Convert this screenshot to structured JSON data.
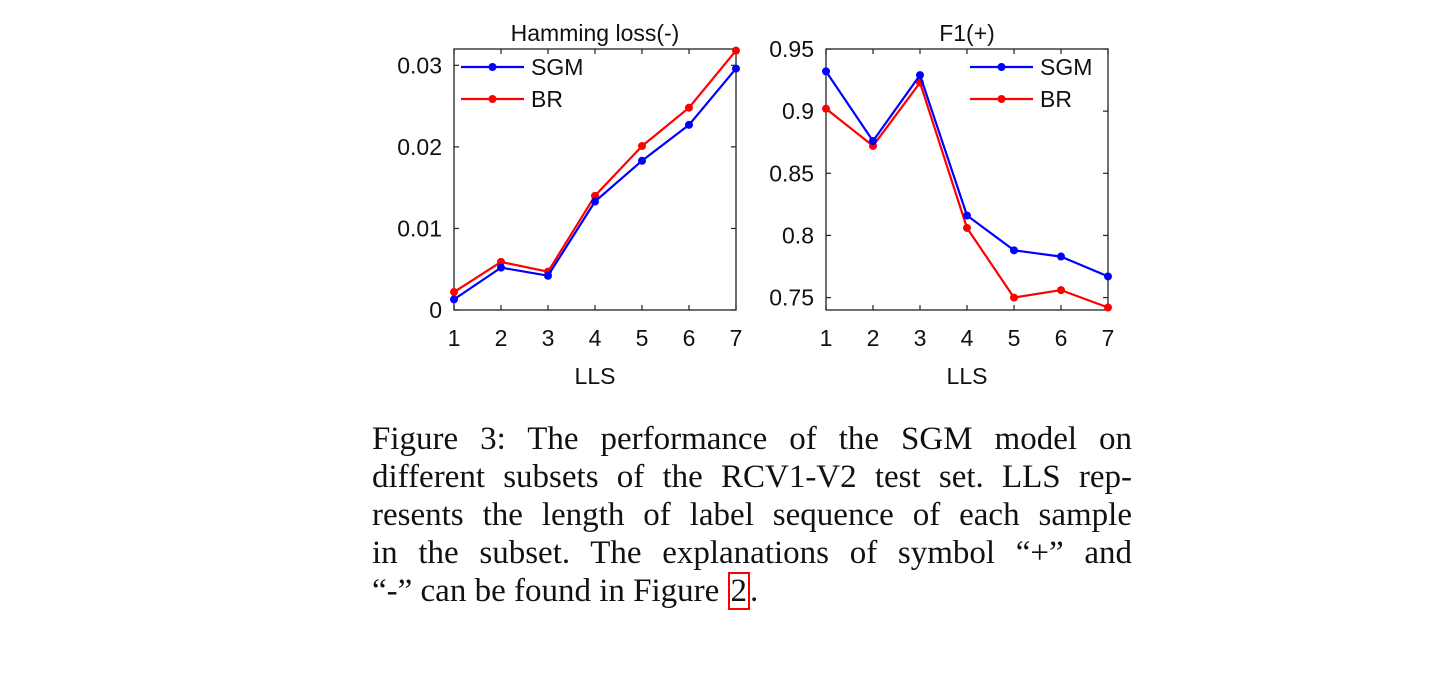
{
  "chart_data": [
    {
      "type": "line",
      "title": "Hamming loss(-)",
      "xlabel": "LLS",
      "ylabel": "",
      "x": [
        1,
        2,
        3,
        4,
        5,
        6,
        7
      ],
      "xlim": [
        1,
        7
      ],
      "ylim": [
        0,
        0.032
      ],
      "yticks": [
        0,
        0.01,
        0.02,
        0.03
      ],
      "ytick_labels": [
        "0",
        "0.01",
        "0.02",
        "0.03"
      ],
      "legend": "top-left",
      "grid": false,
      "series": [
        {
          "name": "SGM",
          "color": "#0000ff",
          "values": [
            0.0013,
            0.0052,
            0.0042,
            0.0133,
            0.0183,
            0.0227,
            0.0296
          ]
        },
        {
          "name": "BR",
          "color": "#ff0000",
          "values": [
            0.0022,
            0.0059,
            0.0047,
            0.014,
            0.0201,
            0.0248,
            0.0318
          ]
        }
      ]
    },
    {
      "type": "line",
      "title": "F1(+)",
      "xlabel": "LLS",
      "ylabel": "",
      "x": [
        1,
        2,
        3,
        4,
        5,
        6,
        7
      ],
      "xlim": [
        1,
        7
      ],
      "ylim": [
        0.74,
        0.95
      ],
      "yticks": [
        0.75,
        0.8,
        0.85,
        0.9,
        0.95
      ],
      "ytick_labels": [
        "0.75",
        "0.8",
        "0.85",
        "0.9",
        "0.95"
      ],
      "legend": "top-right",
      "grid": false,
      "series": [
        {
          "name": "SGM",
          "color": "#0000ff",
          "values": [
            0.932,
            0.876,
            0.929,
            0.816,
            0.788,
            0.783,
            0.767
          ]
        },
        {
          "name": "BR",
          "color": "#ff0000",
          "values": [
            0.902,
            0.872,
            0.923,
            0.806,
            0.75,
            0.756,
            0.742
          ]
        }
      ]
    }
  ],
  "caption": {
    "lines": [
      "Figure 3: The performance of the SGM model on",
      "different subsets of the RCV1-V2 test set. LLS rep-",
      "resents the length of label sequence of each sample",
      "in the subset. The explanations of symbol “+” and"
    ],
    "last_line_text": "“-” can be found in Figure ",
    "figure_ref": "2",
    "last_line_end": ".",
    "ref_box_color": "#ff0000"
  }
}
